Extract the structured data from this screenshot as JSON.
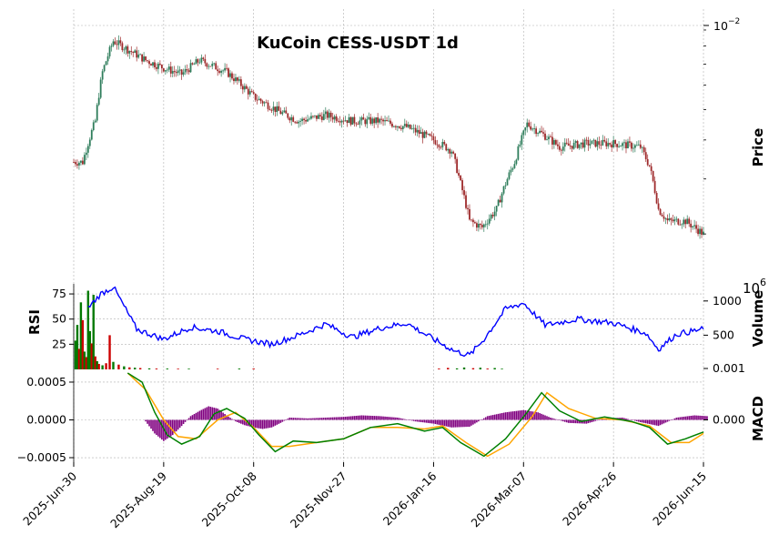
{
  "chart_data": {
    "type": "candlestick",
    "title": "KuCoin CESS-USDT 1d",
    "x_ticks": [
      "2025-Jun-30",
      "2025-Aug-19",
      "2025-Oct-08",
      "2025-Nov-27",
      "2026-Jan-16",
      "2026-Mar-07",
      "2026-Apr-26",
      "2026-Jun-15"
    ],
    "panels": {
      "price": {
        "ylabel": "Price",
        "scale": "log",
        "y_tick_label_base": "10",
        "y_tick_label_exp": "−2",
        "ylim": [
          0.0015,
          0.0105
        ],
        "colors": {
          "up": "#2e7d5b",
          "down": "#9e2a2b"
        },
        "series_close": [
          {
            "day": 0,
            "close": 0.0034
          },
          {
            "day": 5,
            "close": 0.0034
          },
          {
            "day": 12,
            "close": 0.0046
          },
          {
            "day": 16,
            "close": 0.0066
          },
          {
            "day": 22,
            "close": 0.0083
          },
          {
            "day": 30,
            "close": 0.0078
          },
          {
            "day": 40,
            "close": 0.0072
          },
          {
            "day": 50,
            "close": 0.0068
          },
          {
            "day": 60,
            "close": 0.0065
          },
          {
            "day": 70,
            "close": 0.0072
          },
          {
            "day": 85,
            "close": 0.0066
          },
          {
            "day": 100,
            "close": 0.0055
          },
          {
            "day": 115,
            "close": 0.0049
          },
          {
            "day": 125,
            "close": 0.0046
          },
          {
            "day": 140,
            "close": 0.0048
          },
          {
            "day": 155,
            "close": 0.0046
          },
          {
            "day": 170,
            "close": 0.0046
          },
          {
            "day": 185,
            "close": 0.0044
          },
          {
            "day": 200,
            "close": 0.004
          },
          {
            "day": 210,
            "close": 0.0037
          },
          {
            "day": 215,
            "close": 0.0029
          },
          {
            "day": 220,
            "close": 0.0022
          },
          {
            "day": 227,
            "close": 0.0021
          },
          {
            "day": 235,
            "close": 0.0024
          },
          {
            "day": 245,
            "close": 0.0034
          },
          {
            "day": 252,
            "close": 0.0045
          },
          {
            "day": 260,
            "close": 0.0042
          },
          {
            "day": 270,
            "close": 0.0038
          },
          {
            "day": 285,
            "close": 0.0039
          },
          {
            "day": 300,
            "close": 0.0039
          },
          {
            "day": 315,
            "close": 0.0038
          },
          {
            "day": 320,
            "close": 0.0033
          },
          {
            "day": 325,
            "close": 0.0024
          },
          {
            "day": 330,
            "close": 0.0022
          },
          {
            "day": 340,
            "close": 0.0022
          },
          {
            "day": 350,
            "close": 0.002
          }
        ]
      },
      "rsi": {
        "ylabel": "RSI",
        "yticks": [
          25,
          50,
          75
        ],
        "ylim": [
          0,
          85
        ],
        "color": "#ff0000",
        "series": [
          {
            "day": 0,
            "value": 60
          },
          {
            "day": 5,
            "value": 55
          },
          {
            "day": 15,
            "value": 75
          },
          {
            "day": 22,
            "value": 82
          },
          {
            "day": 35,
            "value": 40
          },
          {
            "day": 50,
            "value": 30
          },
          {
            "day": 65,
            "value": 42
          },
          {
            "day": 80,
            "value": 38
          },
          {
            "day": 95,
            "value": 30
          },
          {
            "day": 110,
            "value": 25
          },
          {
            "day": 125,
            "value": 34
          },
          {
            "day": 140,
            "value": 45
          },
          {
            "day": 155,
            "value": 32
          },
          {
            "day": 170,
            "value": 41
          },
          {
            "day": 185,
            "value": 46
          },
          {
            "day": 200,
            "value": 30
          },
          {
            "day": 212,
            "value": 18
          },
          {
            "day": 220,
            "value": 14
          },
          {
            "day": 228,
            "value": 30
          },
          {
            "day": 240,
            "value": 60
          },
          {
            "day": 250,
            "value": 66
          },
          {
            "day": 262,
            "value": 44
          },
          {
            "day": 280,
            "value": 50
          },
          {
            "day": 300,
            "value": 46
          },
          {
            "day": 318,
            "value": 36
          },
          {
            "day": 325,
            "value": 20
          },
          {
            "day": 335,
            "value": 35
          },
          {
            "day": 350,
            "value": 40
          }
        ]
      },
      "volume": {
        "ylabel": "Volume",
        "ylabel_exp": "6",
        "yticks": [
          0.001,
          500,
          1000
        ],
        "ytick_labels": [
          "0.001",
          "500",
          "1000"
        ],
        "colors": {
          "up": "#007a00",
          "down": "#cc0000"
        },
        "bars": [
          {
            "day": 1,
            "value": 420,
            "up": true
          },
          {
            "day": 2,
            "value": 650,
            "up": true
          },
          {
            "day": 3,
            "value": 300,
            "up": false
          },
          {
            "day": 4,
            "value": 980,
            "up": true
          },
          {
            "day": 5,
            "value": 720,
            "up": false
          },
          {
            "day": 6,
            "value": 260,
            "up": true
          },
          {
            "day": 7,
            "value": 180,
            "up": false
          },
          {
            "day": 8,
            "value": 1150,
            "up": true
          },
          {
            "day": 9,
            "value": 560,
            "up": true
          },
          {
            "day": 10,
            "value": 380,
            "up": false
          },
          {
            "day": 11,
            "value": 1090,
            "up": true
          },
          {
            "day": 12,
            "value": 190,
            "up": false
          },
          {
            "day": 13,
            "value": 120,
            "up": true
          },
          {
            "day": 14,
            "value": 80,
            "up": false
          },
          {
            "day": 16,
            "value": 60,
            "up": true
          },
          {
            "day": 18,
            "value": 90,
            "up": false
          },
          {
            "day": 20,
            "value": 500,
            "up": false
          },
          {
            "day": 22,
            "value": 110,
            "up": true
          },
          {
            "day": 25,
            "value": 70,
            "up": false
          },
          {
            "day": 28,
            "value": 45,
            "up": true
          },
          {
            "day": 31,
            "value": 30,
            "up": false
          },
          {
            "day": 34,
            "value": 25,
            "up": true
          },
          {
            "day": 37,
            "value": 20,
            "up": false
          },
          {
            "day": 42,
            "value": 15,
            "up": true
          },
          {
            "day": 46,
            "value": 12,
            "up": false
          },
          {
            "day": 52,
            "value": 12,
            "up": true
          },
          {
            "day": 58,
            "value": 10,
            "up": false
          },
          {
            "day": 64,
            "value": 10,
            "up": true
          },
          {
            "day": 80,
            "value": 10,
            "up": false
          },
          {
            "day": 92,
            "value": 12,
            "up": true
          },
          {
            "day": 100,
            "value": 12,
            "up": false
          },
          {
            "day": 203,
            "value": 12,
            "up": false
          },
          {
            "day": 208,
            "value": 22,
            "up": false
          },
          {
            "day": 213,
            "value": 15,
            "up": true
          },
          {
            "day": 217,
            "value": 28,
            "up": true
          },
          {
            "day": 222,
            "value": 18,
            "up": false
          },
          {
            "day": 226,
            "value": 25,
            "up": true
          },
          {
            "day": 230,
            "value": 12,
            "up": false
          },
          {
            "day": 234,
            "value": 20,
            "up": true
          },
          {
            "day": 238,
            "value": 10,
            "up": true
          }
        ]
      },
      "macd": {
        "ylabel": "MACD",
        "left_yticks": [
          -0.0005,
          0.0,
          0.0005
        ],
        "left_ytick_labels": [
          "−0.0005",
          "0.0000",
          "0.0005"
        ],
        "right_yticks": [
          0.0
        ],
        "right_ytick_labels": [
          "0.000"
        ],
        "ylim": [
          -0.00056,
          0.00062
        ],
        "macd_color": "#008000",
        "signal_color": "#ffa500",
        "hist_color": "#800080",
        "macd_series": [
          {
            "day": 30,
            "value": 0.0009
          },
          {
            "day": 38,
            "value": 0.0005
          },
          {
            "day": 45,
            "value": 0.0001
          },
          {
            "day": 52,
            "value": -0.0002
          },
          {
            "day": 60,
            "value": -0.00032
          },
          {
            "day": 70,
            "value": -0.00022
          },
          {
            "day": 78,
            "value": 8e-05
          },
          {
            "day": 85,
            "value": 0.00015
          },
          {
            "day": 95,
            "value": 2e-05
          },
          {
            "day": 103,
            "value": -0.0002
          },
          {
            "day": 112,
            "value": -0.00042
          },
          {
            "day": 122,
            "value": -0.00028
          },
          {
            "day": 135,
            "value": -0.0003
          },
          {
            "day": 150,
            "value": -0.00025
          },
          {
            "day": 165,
            "value": -0.0001
          },
          {
            "day": 180,
            "value": -5e-05
          },
          {
            "day": 195,
            "value": -0.00015
          },
          {
            "day": 205,
            "value": -0.0001
          },
          {
            "day": 215,
            "value": -0.0003
          },
          {
            "day": 228,
            "value": -0.00048
          },
          {
            "day": 240,
            "value": -0.00025
          },
          {
            "day": 252,
            "value": 0.0001
          },
          {
            "day": 260,
            "value": 0.00036
          },
          {
            "day": 270,
            "value": 0.00012
          },
          {
            "day": 282,
            "value": -2e-05
          },
          {
            "day": 295,
            "value": 4e-05
          },
          {
            "day": 310,
            "value": -2e-05
          },
          {
            "day": 320,
            "value": -0.0001
          },
          {
            "day": 330,
            "value": -0.00032
          },
          {
            "day": 340,
            "value": -0.00025
          },
          {
            "day": 350,
            "value": -0.00016
          }
        ],
        "signal_series": [
          {
            "day": 30,
            "value": 0.0007
          },
          {
            "day": 40,
            "value": 0.0004
          },
          {
            "day": 50,
            "value": 0.0
          },
          {
            "day": 58,
            "value": -0.00022
          },
          {
            "day": 68,
            "value": -0.00025
          },
          {
            "day": 80,
            "value": 0.0
          },
          {
            "day": 90,
            "value": 0.0001
          },
          {
            "day": 100,
            "value": -0.0001
          },
          {
            "day": 110,
            "value": -0.00035
          },
          {
            "day": 120,
            "value": -0.00035
          },
          {
            "day": 135,
            "value": -0.0003
          },
          {
            "day": 150,
            "value": -0.00025
          },
          {
            "day": 165,
            "value": -0.0001
          },
          {
            "day": 180,
            "value": -0.0001
          },
          {
            "day": 195,
            "value": -0.00012
          },
          {
            "day": 205,
            "value": -8e-05
          },
          {
            "day": 218,
            "value": -0.0003
          },
          {
            "day": 230,
            "value": -0.00048
          },
          {
            "day": 242,
            "value": -0.00032
          },
          {
            "day": 255,
            "value": 5e-05
          },
          {
            "day": 263,
            "value": 0.00036
          },
          {
            "day": 275,
            "value": 0.00015
          },
          {
            "day": 290,
            "value": 2e-05
          },
          {
            "day": 305,
            "value": 0.0
          },
          {
            "day": 320,
            "value": -8e-05
          },
          {
            "day": 332,
            "value": -0.0003
          },
          {
            "day": 342,
            "value": -0.0003
          },
          {
            "day": 350,
            "value": -0.00018
          }
        ],
        "histogram": [
          {
            "day": 40,
            "value": -2e-05
          },
          {
            "day": 45,
            "value": -0.00018
          },
          {
            "day": 50,
            "value": -0.00028
          },
          {
            "day": 55,
            "value": -0.0002
          },
          {
            "day": 60,
            "value": -8e-05
          },
          {
            "day": 65,
            "value": 5e-05
          },
          {
            "day": 70,
            "value": 0.00012
          },
          {
            "day": 75,
            "value": 0.00018
          },
          {
            "day": 80,
            "value": 0.00015
          },
          {
            "day": 85,
            "value": 6e-05
          },
          {
            "day": 90,
            "value": -2e-05
          },
          {
            "day": 95,
            "value": -7e-05
          },
          {
            "day": 100,
            "value": -0.0001
          },
          {
            "day": 105,
            "value": -0.00012
          },
          {
            "day": 110,
            "value": -0.0001
          },
          {
            "day": 115,
            "value": -4e-05
          },
          {
            "day": 120,
            "value": 3e-05
          },
          {
            "day": 130,
            "value": 2e-05
          },
          {
            "day": 140,
            "value": 3e-05
          },
          {
            "day": 150,
            "value": 4e-05
          },
          {
            "day": 160,
            "value": 6e-05
          },
          {
            "day": 170,
            "value": 5e-05
          },
          {
            "day": 180,
            "value": 3e-05
          },
          {
            "day": 190,
            "value": -2e-05
          },
          {
            "day": 200,
            "value": -5e-05
          },
          {
            "day": 210,
            "value": -0.0001
          },
          {
            "day": 220,
            "value": -9e-05
          },
          {
            "day": 230,
            "value": 5e-05
          },
          {
            "day": 240,
            "value": 0.0001
          },
          {
            "day": 250,
            "value": 0.00013
          },
          {
            "day": 258,
            "value": 0.0001
          },
          {
            "day": 265,
            "value": 3e-05
          },
          {
            "day": 275,
            "value": -4e-05
          },
          {
            "day": 285,
            "value": -5e-05
          },
          {
            "day": 295,
            "value": 2e-05
          },
          {
            "day": 305,
            "value": 3e-05
          },
          {
            "day": 315,
            "value": -3e-05
          },
          {
            "day": 325,
            "value": -8e-05
          },
          {
            "day": 335,
            "value": 3e-05
          },
          {
            "day": 345,
            "value": 6e-05
          },
          {
            "day": 352,
            "value": 5e-05
          }
        ]
      }
    }
  }
}
